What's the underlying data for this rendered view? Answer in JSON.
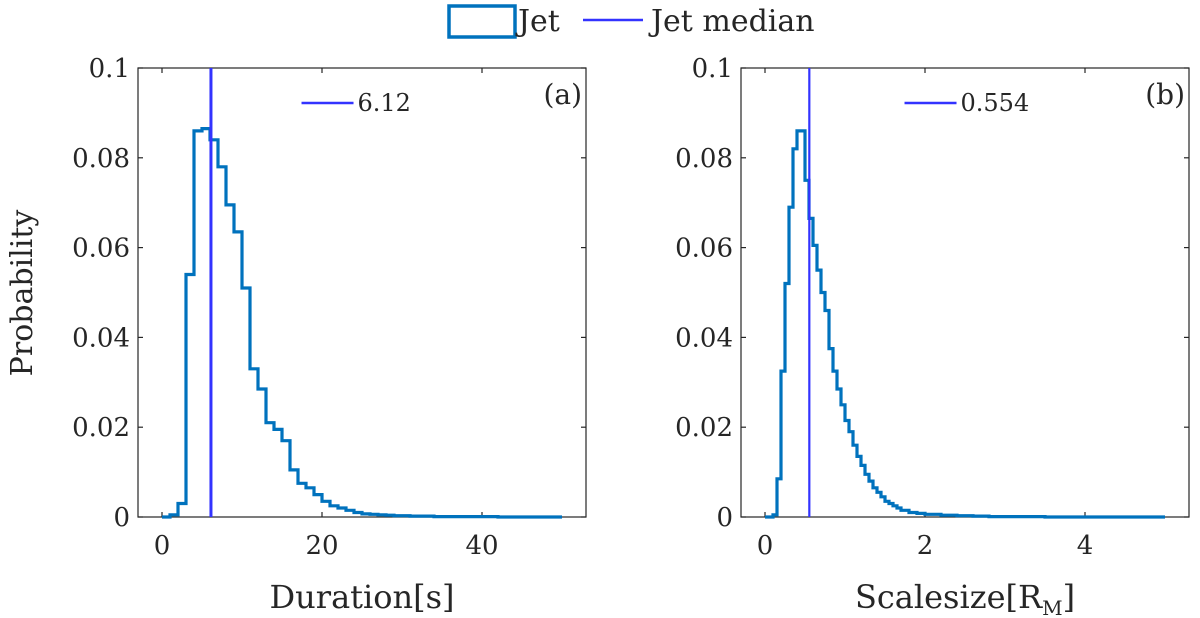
{
  "legend": {
    "hist_label": "Jet",
    "median_label": "Jet median"
  },
  "colors": {
    "hist": "#0072BD",
    "median": "#3333FF",
    "axis": "#262626"
  },
  "ylabel": "Probability",
  "chart_data": [
    {
      "type": "histogram",
      "panel_label": "(a)",
      "xlabel": "Duration[s]",
      "ylabel": "Probability",
      "xlim": [
        -3,
        53
      ],
      "ylim": [
        0,
        0.1
      ],
      "xticks": [
        0,
        20,
        40
      ],
      "xtick_labels": [
        "0",
        "20",
        "40"
      ],
      "yticks": [
        0,
        0.02,
        0.04,
        0.06,
        0.08,
        0.1
      ],
      "ytick_labels": [
        "0",
        "0.02",
        "0.04",
        "0.06",
        "0.08",
        "0.1"
      ],
      "median": 6.12,
      "median_label": "6.12",
      "bin_edges": [
        0,
        1,
        2,
        3,
        4,
        5,
        6,
        7,
        8,
        9,
        10,
        11,
        12,
        13,
        14,
        15,
        16,
        17,
        18,
        19,
        20,
        21,
        22,
        23,
        24,
        25,
        26,
        27,
        28,
        29,
        30,
        31,
        32,
        33,
        34,
        35,
        36,
        37,
        38,
        39,
        40,
        41,
        42,
        43,
        44,
        45,
        46,
        47,
        48,
        49,
        50
      ],
      "values": [
        0.0,
        0.0005,
        0.003,
        0.054,
        0.086,
        0.0865,
        0.084,
        0.078,
        0.0695,
        0.0635,
        0.051,
        0.033,
        0.0285,
        0.021,
        0.0195,
        0.017,
        0.0105,
        0.0075,
        0.0065,
        0.005,
        0.0035,
        0.0025,
        0.002,
        0.0015,
        0.001,
        0.0007,
        0.0006,
        0.0005,
        0.0004,
        0.0003,
        0.0003,
        0.0002,
        0.0002,
        0.0002,
        0.0001,
        0.0001,
        0.0001,
        0.0001,
        0.0001,
        0.0001,
        0.0001,
        0.0001,
        0.0,
        0.0,
        0.0,
        0.0,
        0.0,
        0.0,
        0.0,
        0.0
      ]
    },
    {
      "type": "histogram",
      "panel_label": "(b)",
      "xlabel": "Scalesize[R",
      "xlabel_sub": "M",
      "xlabel_end": "]",
      "ylabel": "Probability",
      "xlim": [
        -0.3,
        5.3
      ],
      "ylim": [
        0,
        0.1
      ],
      "xticks": [
        0,
        2,
        4
      ],
      "xtick_labels": [
        "0",
        "2",
        "4"
      ],
      "yticks": [
        0,
        0.02,
        0.04,
        0.06,
        0.08,
        0.1
      ],
      "ytick_labels": [
        "0",
        "0.02",
        "0.04",
        "0.06",
        "0.08",
        "0.1"
      ],
      "median": 0.554,
      "median_label": "0.554",
      "bin_edges": [
        0.0,
        0.1,
        0.15,
        0.2,
        0.25,
        0.3,
        0.35,
        0.4,
        0.45,
        0.5,
        0.55,
        0.6,
        0.65,
        0.7,
        0.75,
        0.8,
        0.85,
        0.9,
        0.95,
        1.0,
        1.05,
        1.1,
        1.15,
        1.2,
        1.25,
        1.3,
        1.35,
        1.4,
        1.45,
        1.5,
        1.55,
        1.6,
        1.65,
        1.7,
        1.8,
        1.9,
        2.0,
        2.2,
        2.4,
        2.6,
        2.8,
        3.0,
        3.5,
        4.0,
        4.5,
        5.0
      ],
      "values": [
        0.0,
        0.0005,
        0.0085,
        0.0325,
        0.052,
        0.069,
        0.082,
        0.086,
        0.086,
        0.075,
        0.0665,
        0.0605,
        0.055,
        0.05,
        0.046,
        0.0375,
        0.0325,
        0.0285,
        0.025,
        0.0215,
        0.019,
        0.016,
        0.0135,
        0.0115,
        0.0095,
        0.008,
        0.0065,
        0.0055,
        0.0045,
        0.0035,
        0.003,
        0.0025,
        0.002,
        0.0015,
        0.001,
        0.0008,
        0.0006,
        0.0004,
        0.0003,
        0.0002,
        0.0001,
        0.0001,
        0.0,
        0.0,
        0.0
      ]
    }
  ]
}
